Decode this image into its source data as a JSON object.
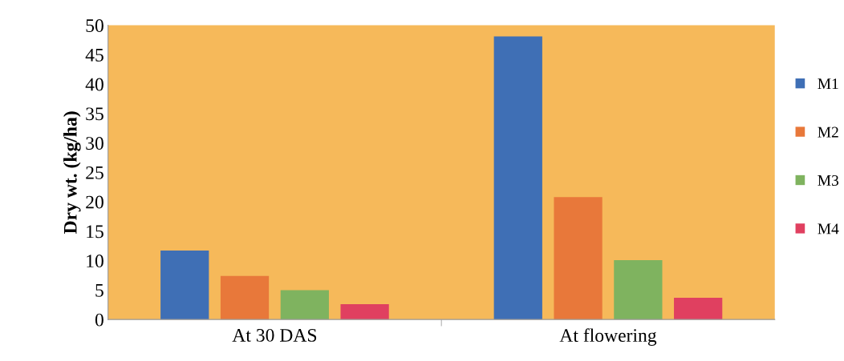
{
  "chart_data": {
    "type": "bar",
    "ylabel": "Dry wt. (kg/ha)",
    "categories": [
      "At 30 DAS",
      "At flowering"
    ],
    "series": [
      {
        "name": "M1",
        "color": "#3f6fb5",
        "values": [
          11.7,
          48.1
        ]
      },
      {
        "name": "M2",
        "color": "#e8783a",
        "values": [
          7.4,
          20.8
        ]
      },
      {
        "name": "M3",
        "color": "#7fb35f",
        "values": [
          5.0,
          10.1
        ]
      },
      {
        "name": "M4",
        "color": "#e04060",
        "values": [
          2.6,
          3.7
        ]
      }
    ],
    "ylim": [
      0,
      50
    ],
    "yticks": [
      0,
      5,
      10,
      15,
      20,
      25,
      30,
      35,
      40,
      45,
      50
    ],
    "grid": false,
    "legend": "right"
  }
}
